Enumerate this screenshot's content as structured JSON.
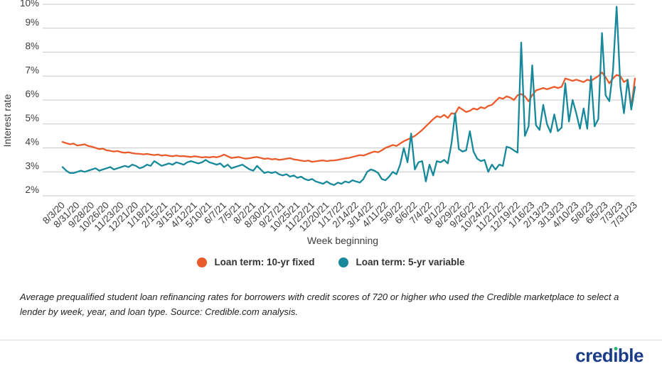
{
  "chart_data": {
    "type": "line",
    "title": "",
    "xlabel": "Week beginning",
    "ylabel": "Interest rate",
    "x_unit": "weekly data points, tick labels every 4 weeks",
    "x_tick_labels": [
      "8/3/20",
      "8/31/20",
      "9/28/20",
      "10/26/20",
      "11/23/20",
      "12/21/20",
      "1/18/21",
      "2/15/21",
      "3/15/21",
      "4/12/21",
      "5/10/21",
      "6/7/21",
      "7/5/21",
      "8/2/21",
      "8/30/21",
      "9/27/21",
      "10/25/21",
      "11/22/21",
      "12/20/21",
      "1/17/22",
      "2/14/22",
      "3/14/22",
      "4/11/22",
      "5/9/22",
      "6/6/22",
      "7/4/22",
      "8/1/22",
      "8/29/22",
      "9/26/22",
      "10/24/22",
      "11/21/22",
      "12/19/22",
      "1/16/23",
      "2/13/23",
      "3/13/23",
      "4/10/23",
      "5/8/23",
      "6/5/23",
      "7/3/23",
      "7/31/23"
    ],
    "y_ticks": [
      2,
      3,
      4,
      5,
      6,
      7,
      8,
      9,
      10
    ],
    "y_tick_suffix": "%",
    "ylim": [
      2,
      10
    ],
    "grid": true,
    "grid_color": "#c8c8c8",
    "legend_position": "bottom",
    "series": [
      {
        "name": "Loan term: 10-yr fixed",
        "color": "#ea5b2b",
        "values": [
          4.25,
          4.2,
          4.15,
          4.18,
          4.1,
          4.12,
          4.15,
          4.08,
          4.05,
          4.0,
          3.95,
          3.97,
          3.9,
          3.88,
          3.85,
          3.87,
          3.82,
          3.8,
          3.82,
          3.78,
          3.76,
          3.75,
          3.73,
          3.75,
          3.72,
          3.7,
          3.72,
          3.68,
          3.7,
          3.67,
          3.65,
          3.68,
          3.65,
          3.66,
          3.64,
          3.62,
          3.65,
          3.63,
          3.6,
          3.62,
          3.6,
          3.63,
          3.61,
          3.65,
          3.72,
          3.65,
          3.58,
          3.6,
          3.62,
          3.58,
          3.55,
          3.57,
          3.6,
          3.62,
          3.58,
          3.54,
          3.56,
          3.52,
          3.54,
          3.5,
          3.52,
          3.55,
          3.57,
          3.52,
          3.5,
          3.47,
          3.45,
          3.47,
          3.42,
          3.44,
          3.46,
          3.48,
          3.45,
          3.47,
          3.48,
          3.5,
          3.53,
          3.56,
          3.58,
          3.62,
          3.66,
          3.7,
          3.68,
          3.74,
          3.8,
          3.85,
          3.82,
          3.9,
          4.0,
          4.06,
          4.12,
          4.08,
          4.18,
          4.28,
          4.35,
          4.42,
          4.5,
          4.62,
          4.75,
          4.9,
          5.05,
          5.2,
          5.32,
          5.28,
          5.38,
          5.25,
          5.45,
          5.42,
          5.7,
          5.6,
          5.5,
          5.55,
          5.65,
          5.6,
          5.7,
          5.65,
          5.75,
          5.8,
          5.95,
          6.1,
          6.05,
          6.15,
          6.1,
          6.0,
          6.2,
          6.25,
          6.15,
          5.95,
          6.2,
          6.4,
          6.45,
          6.5,
          6.45,
          6.5,
          6.55,
          6.5,
          6.55,
          6.9,
          6.85,
          6.8,
          6.85,
          6.8,
          6.75,
          6.85,
          6.8,
          6.9,
          7.0,
          7.15,
          6.95,
          6.7,
          6.9,
          7.05,
          7.0,
          6.75,
          6.85,
          5.7,
          6.9
        ]
      },
      {
        "name": "Loan term: 5-yr variable",
        "color": "#17899b",
        "values": [
          3.2,
          3.05,
          2.95,
          2.95,
          3.0,
          3.05,
          3.0,
          3.05,
          3.1,
          3.15,
          3.05,
          3.1,
          3.15,
          3.2,
          3.1,
          3.15,
          3.2,
          3.25,
          3.2,
          3.3,
          3.25,
          3.15,
          3.2,
          3.3,
          3.25,
          3.45,
          3.35,
          3.25,
          3.3,
          3.35,
          3.3,
          3.4,
          3.35,
          3.3,
          3.4,
          3.45,
          3.4,
          3.35,
          3.4,
          3.5,
          3.4,
          3.35,
          3.3,
          3.35,
          3.2,
          3.3,
          3.15,
          3.2,
          3.25,
          3.3,
          3.2,
          3.1,
          3.05,
          3.25,
          3.1,
          2.95,
          3.0,
          2.95,
          3.0,
          2.9,
          2.85,
          2.9,
          2.8,
          2.85,
          2.75,
          2.8,
          2.7,
          2.65,
          2.7,
          2.6,
          2.55,
          2.5,
          2.6,
          2.5,
          2.45,
          2.55,
          2.5,
          2.6,
          2.55,
          2.65,
          2.6,
          2.55,
          2.7,
          3.0,
          3.1,
          3.05,
          2.95,
          2.7,
          2.65,
          2.8,
          3.0,
          2.9,
          3.3,
          4.0,
          3.4,
          4.6,
          3.1,
          3.4,
          3.45,
          2.6,
          3.3,
          2.85,
          3.45,
          3.4,
          3.5,
          3.35,
          4.2,
          5.45,
          3.95,
          3.85,
          3.9,
          4.7,
          3.85,
          3.55,
          3.45,
          3.5,
          3.0,
          3.3,
          3.1,
          3.3,
          3.25,
          4.05,
          4.0,
          3.9,
          3.8,
          8.4,
          4.5,
          4.9,
          7.45,
          4.95,
          4.75,
          5.8,
          5.0,
          4.65,
          5.4,
          4.7,
          4.85,
          6.7,
          5.1,
          6.0,
          5.45,
          4.8,
          5.65,
          4.8,
          7.0,
          4.9,
          5.2,
          8.8,
          6.2,
          5.95,
          7.2,
          9.9,
          6.6,
          5.45,
          6.85,
          5.6,
          6.55
        ]
      }
    ]
  },
  "footnote": "Average prequalified student loan refinancing rates for borrowers with credit scores of 720 or higher who used the Credible marketplace to select a lender by week, year, and loan type. Source: Credible.com analysis.",
  "footer": {
    "logo_text": "credible",
    "logo_pre": "cred",
    "logo_post": "ble",
    "logo_color": "#1b3c87",
    "logo_dot_color": "#2eb673"
  }
}
